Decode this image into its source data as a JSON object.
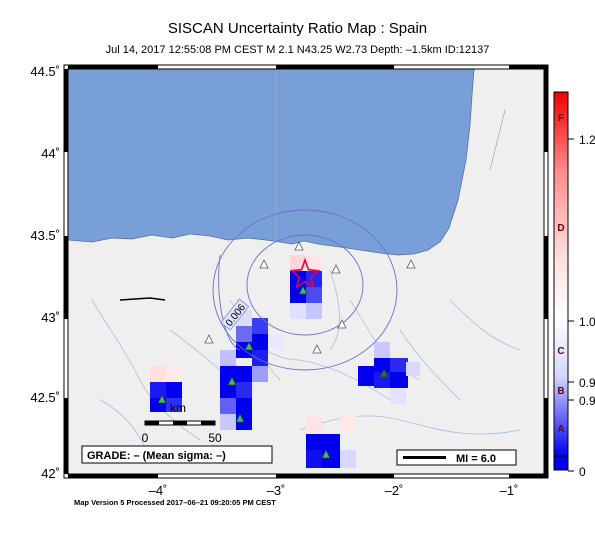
{
  "title": "SISCAN Uncertainty Ratio Map : Spain",
  "subtitle": "Jul 14, 2017 12:55:08 PM CEST   M 2.1   N43.25 W2.73   Depth: –1.5km   ID:12137",
  "footer": "Map Version 5 Processed 2017–06–21 09:20:05 PM CEST",
  "map": {
    "lat_ticks": [
      "44.5˚",
      "44˚",
      "43.5˚",
      "43˚",
      "42.5˚",
      "42˚"
    ],
    "lon_ticks": [
      "–4˚",
      "–3˚",
      "–2˚",
      "–1˚"
    ],
    "grade_label": "GRADE: – (Mean sigma: –)",
    "mi_label": "MI = 6.0",
    "scale_unit": "km",
    "scale_ticks": [
      "0",
      "50"
    ],
    "contour_label": "0.006",
    "colors": {
      "sea": "#799fd9",
      "land": "#efefef",
      "border": "#000000"
    }
  },
  "colorbar": {
    "letters": [
      "F",
      "D",
      "C",
      "B",
      "A"
    ],
    "values": [
      "1.2",
      "1.0",
      "0.9",
      "0.9",
      "0"
    ],
    "colors": {
      "top": "#f00000",
      "mid": "#ffffff",
      "bottom": "#0000ee"
    }
  }
}
